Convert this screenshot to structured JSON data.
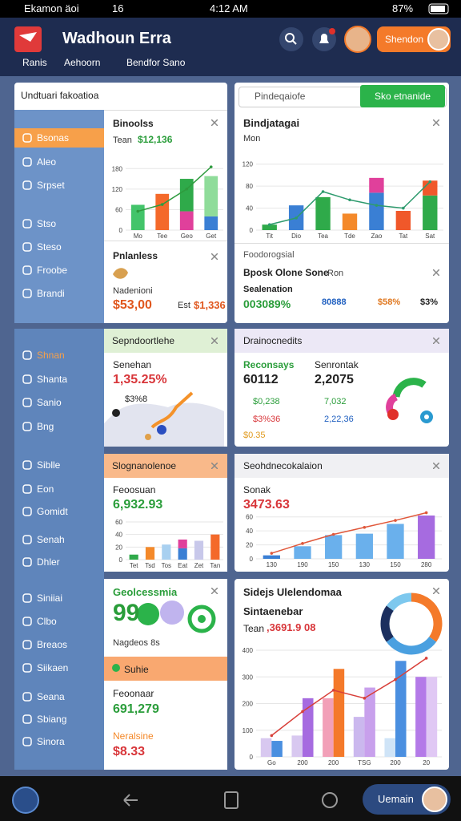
{
  "status_bar": {
    "carrier": "Ekamon äoi",
    "signal": "16",
    "time": "4:12 AM",
    "battery": "87%"
  },
  "header": {
    "title": "Wadhoun Erra",
    "tabs": [
      "Ranis",
      "Aehoorn",
      "Bendfor Sano"
    ],
    "button": "Shendon"
  },
  "sidebar": {
    "title": "Undtuari fakoatioa",
    "top": [
      "Bsonas",
      "Aleo",
      "Srpset",
      "Stso",
      "Steso",
      "Froobe",
      "Brandi"
    ],
    "bottom": [
      "Shnan",
      "Shanta",
      "Sanio",
      "Bng",
      "Siblle",
      "Eon",
      "Gomidt",
      "Senah",
      "Dhler",
      "Siniiai",
      "Clbo",
      "Breaos",
      "Siikaen",
      "Seana",
      "Sbiang",
      "Sinora"
    ]
  },
  "panels": {
    "binoolss": {
      "title": "Binoolss",
      "label": "Tean",
      "value": "$12,136",
      "chart": {
        "type": "bar",
        "stacked": true,
        "categories": [
          "Mo",
          "Tee",
          "Geo",
          "Get"
        ],
        "ylim": [
          0,
          190
        ],
        "yticks": [
          0,
          60,
          120,
          180
        ],
        "series": [
          {
            "colors": [
              "#43c46a",
              "#f4692a",
              "#e0409b",
              "#3a7fd4"
            ],
            "values": [
              74,
              106,
              55,
              40
            ]
          },
          {
            "colors": [
              "#43c46a",
              "#43c46a",
              "#2faa4a",
              "#8fdc9a"
            ],
            "values": [
              0,
              0,
              95,
              118
            ]
          },
          {
            "type": "line",
            "color": "#2e9b3e",
            "values": [
              55,
              75,
              120,
              185
            ]
          }
        ]
      }
    },
    "pnlanless": {
      "title": "Pnlanless",
      "label": "Nadenioni",
      "value": "$53,00",
      "label2": "Est",
      "value2": "$1,336"
    },
    "bindjatagai": {
      "search": "Pindeqaiofe",
      "button": "Sko etnanide",
      "title": "Bindjatagai",
      "label": "Mon",
      "chart": {
        "type": "bar",
        "stacked": true,
        "categories": [
          "Tit",
          "Dio",
          "Tea",
          "Tde",
          "Zao",
          "Tat",
          "Sat"
        ],
        "ylim": [
          0,
          140
        ],
        "yticks": [
          0,
          40,
          80,
          120
        ],
        "series": [
          {
            "colors": [
              "#2faa4a",
              "#3a7fd4",
              "#2faa4a",
              "#f4892a",
              "#3a7fd4",
              "#f0582a",
              "#2faa4a"
            ],
            "values": [
              10,
              45,
              60,
              30,
              68,
              35,
              63
            ]
          },
          {
            "colors": [
              "#2faa4a",
              "#3a7fd4",
              "#2faa4a",
              "#f4892a",
              "#e0409b",
              "#f0582a",
              "#f0582a"
            ],
            "values": [
              0,
              0,
              0,
              0,
              27,
              0,
              27
            ]
          },
          {
            "type": "line",
            "color": "#2e9b6e",
            "values": [
              10,
              22,
              70,
              55,
              45,
              40,
              88
            ]
          }
        ]
      }
    },
    "foodorogsial": {
      "title": "Foodorogsial",
      "row": "Bposk Olone Sone",
      "row_note": "Ron",
      "label": "Sealenation",
      "stats": [
        "003089%",
        "80888",
        "$58%",
        "$3%"
      ]
    },
    "sepndoortlehe": {
      "title": "Sepndoortlehe",
      "label": "Senehan",
      "value": "1,35.25%",
      "note": "$3%8"
    },
    "drainocnedits": {
      "title": "Drainocnedits",
      "items": [
        {
          "label": "Reconsays",
          "value": "60112"
        },
        {
          "label": "Senrontak",
          "value": "2,2075"
        }
      ],
      "list": [
        "$0,238",
        "7,032",
        "$3%36",
        "2,22,36",
        "$0.35"
      ]
    },
    "slognanolenoe": {
      "title": "Slognanolenoe",
      "label": "Feoosuan",
      "value": "6,932.93",
      "chart": {
        "type": "bar",
        "stacked": true,
        "categories": [
          "Tet",
          "Tsd",
          "Tos",
          "Eat",
          "Zet",
          "Tan"
        ],
        "ylim": [
          0,
          60
        ],
        "yticks": [
          0,
          20,
          40,
          60
        ],
        "series": [
          {
            "colors": [
              "#2faa4a",
              "#f4892a",
              "#a8d0f0",
              "#3a7fd4",
              "#c8c8ea",
              "#f4692a"
            ],
            "values": [
              8,
              20,
              24,
              18,
              30,
              40
            ]
          },
          {
            "colors": [
              "#2faa4a",
              "#f4892a",
              "#a8d0f0",
              "#e0409b",
              "#c8c8ea",
              "#f4692a"
            ],
            "values": [
              0,
              0,
              0,
              14,
              0,
              0
            ]
          }
        ]
      }
    },
    "seohdnecokalaion": {
      "title": "Seohdnecokalaion",
      "label": "Sonak",
      "value": "3473.63",
      "chart": {
        "type": "bar",
        "stacked": true,
        "categories": [
          "130",
          "190",
          "150",
          "130",
          "150",
          "280"
        ],
        "ylim": [
          0,
          70
        ],
        "yticks": [
          0,
          20,
          40,
          60
        ],
        "series": [
          {
            "colors": [
              "#3a7fd4",
              "#6ab0ec",
              "#6ab0ec",
              "#6ab0ec",
              "#6ab0ec",
              "#a66be0"
            ],
            "values": [
              5,
              18,
              34,
              36,
              50,
              62
            ]
          },
          {
            "type": "line",
            "color": "#e0573a",
            "values": [
              8,
              22,
              35,
              45,
              55,
              66
            ]
          }
        ]
      }
    },
    "geolcessmia": {
      "title": "Geolcessmia",
      "big": "99",
      "note": "Nagdeos 8s",
      "strip": "Suhie",
      "label": "Feoonaar",
      "value": "691,279",
      "label2": "Neralsine",
      "value2": "$8.33"
    },
    "sidejs": {
      "title": "Sidejs Ulelendomaa",
      "subtitle": "Sintaenebar",
      "label": "Tean",
      "value": ",3691.9 08",
      "donut": {
        "type": "pie",
        "values": [
          35,
          30,
          20,
          15
        ],
        "colors": [
          "#f47a2a",
          "#4aa0e0",
          "#1c2f5e",
          "#7dc8ee"
        ]
      },
      "chart": {
        "type": "bar",
        "stacked": false,
        "categories": [
          "Go",
          "200",
          "200",
          "TSG",
          "200",
          "20"
        ],
        "ylim": [
          0,
          400
        ],
        "yticks": [
          0,
          100,
          200,
          300,
          400
        ],
        "series": [
          {
            "colors": [
              "#d8c8f0",
              "#d8c8f0",
              "#f2a0b8",
              "#cbb8ee",
              "#cfe4f7",
              "#b47ae8"
            ],
            "values": [
              70,
              80,
              220,
              150,
              70,
              300
            ]
          },
          {
            "colors": [
              "#4a8fe0",
              "#a66be0",
              "#f4792a",
              "#c8a0ec",
              "#4a8fe0",
              "#e0c8f4"
            ],
            "values": [
              60,
              220,
              330,
              260,
              360,
              300
            ]
          },
          {
            "type": "line",
            "color": "#d8403a",
            "values": [
              80,
              170,
              250,
              220,
              290,
              370
            ]
          }
        ]
      }
    }
  },
  "nav": {
    "button": "Uemain"
  }
}
